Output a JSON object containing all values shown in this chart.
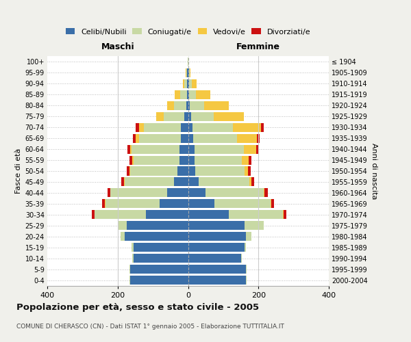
{
  "age_groups": [
    "0-4",
    "5-9",
    "10-14",
    "15-19",
    "20-24",
    "25-29",
    "30-34",
    "35-39",
    "40-44",
    "45-49",
    "50-54",
    "55-59",
    "60-64",
    "65-69",
    "70-74",
    "75-79",
    "80-84",
    "85-89",
    "90-94",
    "95-99",
    "100+"
  ],
  "birth_years": [
    "2000-2004",
    "1995-1999",
    "1990-1994",
    "1985-1989",
    "1980-1984",
    "1975-1979",
    "1970-1974",
    "1965-1969",
    "1960-1964",
    "1955-1959",
    "1950-1954",
    "1945-1949",
    "1940-1944",
    "1935-1939",
    "1930-1934",
    "1925-1929",
    "1920-1924",
    "1915-1919",
    "1910-1914",
    "1905-1909",
    "≤ 1904"
  ],
  "males": {
    "celibi": [
      165,
      165,
      155,
      155,
      180,
      175,
      120,
      80,
      60,
      40,
      30,
      25,
      25,
      20,
      20,
      10,
      5,
      3,
      2,
      2,
      0
    ],
    "coniugati": [
      2,
      2,
      3,
      5,
      12,
      25,
      145,
      155,
      160,
      140,
      135,
      130,
      135,
      120,
      105,
      60,
      35,
      20,
      8,
      3,
      1
    ],
    "vedovi": [
      0,
      0,
      0,
      0,
      0,
      0,
      1,
      1,
      1,
      2,
      2,
      3,
      5,
      8,
      15,
      20,
      20,
      15,
      5,
      1,
      0
    ],
    "divorziati": [
      0,
      0,
      0,
      0,
      0,
      0,
      8,
      8,
      8,
      8,
      8,
      8,
      8,
      8,
      8,
      0,
      0,
      0,
      0,
      0,
      0
    ]
  },
  "females": {
    "nubili": [
      165,
      165,
      150,
      160,
      165,
      160,
      115,
      75,
      50,
      30,
      20,
      18,
      18,
      15,
      12,
      8,
      5,
      3,
      2,
      2,
      0
    ],
    "coniugate": [
      2,
      2,
      3,
      5,
      15,
      55,
      155,
      160,
      165,
      145,
      140,
      135,
      140,
      125,
      115,
      65,
      40,
      20,
      8,
      3,
      1
    ],
    "vedove": [
      0,
      0,
      0,
      0,
      0,
      0,
      2,
      2,
      3,
      5,
      10,
      20,
      35,
      55,
      80,
      85,
      70,
      40,
      15,
      2,
      0
    ],
    "divorziate": [
      0,
      0,
      0,
      0,
      0,
      0,
      8,
      8,
      8,
      8,
      8,
      8,
      8,
      8,
      8,
      0,
      0,
      0,
      0,
      0,
      0
    ]
  },
  "colors": {
    "celibi": "#3a6ea8",
    "coniugati": "#c8d9a4",
    "vedovi": "#f5c842",
    "divorziati": "#cc1111"
  },
  "xlim": 400,
  "title": "Popolazione per età, sesso e stato civile - 2005",
  "subtitle": "COMUNE DI CHERASCO (CN) - Dati ISTAT 1° gennaio 2005 - Elaborazione TUTTITALIA.IT",
  "xlabel_left": "Maschi",
  "xlabel_right": "Femmine",
  "ylabel_left": "Fasce di età",
  "ylabel_right": "Anni di nascita",
  "background_color": "#f0f0eb",
  "plot_background": "#ffffff",
  "grid_color": "#cccccc"
}
